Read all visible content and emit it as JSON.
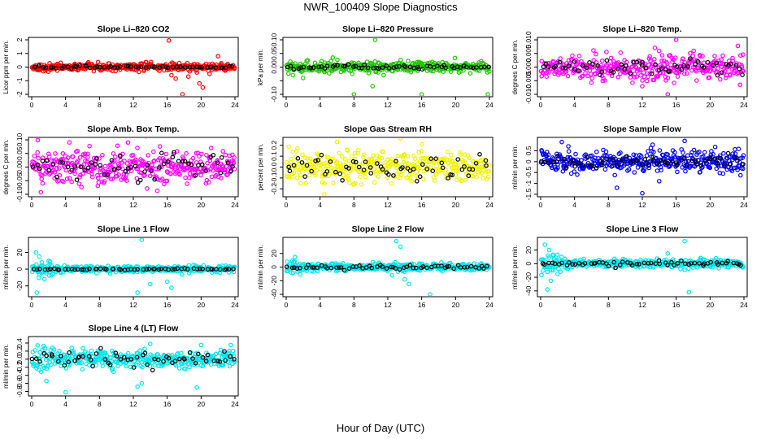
{
  "figure": {
    "title": "NWR_100409  Slope Diagnostics",
    "xlabel": "Hour of Day (UTC)"
  },
  "colors": {
    "red": "#ff0000",
    "green": "#1fc400",
    "magenta": "#ff00ff",
    "yellow": "#f2f200",
    "blue": "#0000ff",
    "cyan": "#00e5ee",
    "black": "#000000"
  },
  "chart_data": [
    {
      "type": "scatter",
      "title": "Slope Li–820 CO2",
      "ylabel": "Licor ppm per min.",
      "color": "red",
      "xlim": [
        0,
        24
      ],
      "x_ticks": [
        "0",
        "4",
        "8",
        "12",
        "16",
        "20",
        "24"
      ],
      "ylim": [
        -2,
        2
      ],
      "y_ticks": [
        -2,
        -1,
        0,
        1,
        2
      ],
      "y_tick_labels": [
        "-2",
        "-1",
        "0",
        "1",
        "2"
      ],
      "grid": false,
      "series": [
        {
          "color": "red",
          "spread": 0.18,
          "outliers": [
            [
              16.2,
              1.95
            ],
            [
              16.5,
              -0.6
            ],
            [
              17.0,
              -0.85
            ],
            [
              17.8,
              -2.0
            ],
            [
              18.5,
              -0.7
            ],
            [
              19.5,
              -0.4
            ],
            [
              19.8,
              -1.2
            ],
            [
              20.2,
              -1.5
            ],
            [
              21.0,
              -0.5
            ],
            [
              22.0,
              0.8
            ]
          ]
        },
        {
          "color": "black",
          "spread": 0.07
        }
      ]
    },
    {
      "type": "scatter",
      "title": "Slope Li–820 Pressure",
      "ylabel": "kPa per min.",
      "color": "green",
      "xlim": [
        0,
        24
      ],
      "x_ticks": [
        "0",
        "4",
        "8",
        "12",
        "16",
        "20",
        "24"
      ],
      "ylim": [
        -0.1,
        0.1
      ],
      "y_ticks": [
        -0.1,
        -0.05,
        0,
        0.05,
        0.1
      ],
      "y_tick_labels": [
        "-0.10",
        "",
        "0.00",
        "0.05",
        "0.10"
      ],
      "grid": false,
      "series": [
        {
          "color": "green",
          "spread": 0.012,
          "outliers": [
            [
              0.5,
              0.02
            ],
            [
              0.8,
              -0.03
            ],
            [
              2.0,
              -0.04
            ],
            [
              5.5,
              0.035
            ],
            [
              8.0,
              -0.1
            ],
            [
              10.5,
              0.1
            ],
            [
              10.2,
              -0.07
            ],
            [
              11.5,
              -0.03
            ],
            [
              16.0,
              -0.1
            ],
            [
              23.8,
              -0.1
            ]
          ]
        },
        {
          "color": "black",
          "spread": 0.005
        }
      ]
    },
    {
      "type": "scatter",
      "title": "Slope Li–820 Temp.",
      "ylabel": "degrees C per min.",
      "color": "magenta",
      "xlim": [
        0,
        24
      ],
      "x_ticks": [
        "0",
        "4",
        "8",
        "12",
        "16",
        "20",
        "24"
      ],
      "ylim": [
        -0.01,
        0.01
      ],
      "y_ticks": [
        -0.01,
        -0.005,
        0,
        0.005,
        0.01
      ],
      "y_tick_labels": [
        "-0.010",
        "-0.005",
        "0.000",
        "0.005",
        "0.010"
      ],
      "grid": false,
      "series": [
        {
          "color": "magenta",
          "spread": 0.003,
          "outliers": [
            [
              12.0,
              -0.007
            ],
            [
              15.0,
              -0.01
            ],
            [
              16.0,
              0.01
            ]
          ]
        },
        {
          "color": "black",
          "spread": 0.002
        }
      ]
    },
    {
      "type": "scatter",
      "title": "Slope Amb. Box Temp.",
      "ylabel": "degrees C per min.",
      "color": "magenta",
      "xlim": [
        0,
        24
      ],
      "x_ticks": [
        "0",
        "4",
        "8",
        "12",
        "16",
        "20",
        "24"
      ],
      "ylim": [
        -0.1,
        0.1
      ],
      "y_ticks": [
        -0.1,
        -0.05,
        0,
        0.05,
        0.1
      ],
      "y_tick_labels": [
        "-0.10",
        "-0.05",
        "0.00",
        "0.05",
        "0.10"
      ],
      "grid": false,
      "series": [
        {
          "color": "magenta",
          "spread": 0.045,
          "outliers": []
        },
        {
          "color": "black",
          "spread": 0.035
        }
      ]
    },
    {
      "type": "scatter",
      "title": "Slope Gas Stream RH",
      "ylabel": "percent per min.",
      "color": "yellow",
      "xlim": [
        0,
        24
      ],
      "x_ticks": [
        "0",
        "4",
        "8",
        "12",
        "16",
        "20",
        "24"
      ],
      "ylim": [
        -0.25,
        0.25
      ],
      "y_ticks": [
        -0.2,
        -0.1,
        0,
        0.1,
        0.2
      ],
      "y_tick_labels": [
        "-0.2",
        "-0.1",
        "0.0",
        "0.1",
        "0.2"
      ],
      "grid": false,
      "series": [
        {
          "color": "yellow",
          "spread": 0.09,
          "outliers": [
            [
              4.5,
              -0.25
            ],
            [
              6.0,
              0.23
            ]
          ]
        },
        {
          "color": "black",
          "spread": 0.07
        }
      ]
    },
    {
      "type": "scatter",
      "title": "Slope Sample Flow",
      "ylabel": "ml/min per min.",
      "color": "blue",
      "xlim": [
        0,
        24
      ],
      "x_ticks": [
        "0",
        "4",
        "8",
        "12",
        "16",
        "20",
        "24"
      ],
      "ylim": [
        -1.5,
        1.0
      ],
      "y_ticks": [
        -1.5,
        -1,
        -0.5,
        0,
        0.5
      ],
      "y_tick_labels": [
        "-1.5",
        "-1",
        "-0.5",
        "0",
        "0.5"
      ],
      "grid": false,
      "series": [
        {
          "color": "blue",
          "spread": 0.32,
          "outliers": [
            [
              2.5,
              0.9
            ],
            [
              12.0,
              -1.45
            ],
            [
              14.0,
              -0.9
            ],
            [
              17.0,
              0.95
            ],
            [
              9.0,
              -1.2
            ]
          ]
        },
        {
          "color": "black",
          "spread": 0.2
        }
      ]
    },
    {
      "type": "scatter",
      "title": "Slope Line 1 Flow",
      "ylabel": "ml/min per min.",
      "color": "cyan",
      "xlim": [
        0,
        24
      ],
      "x_ticks": [
        "0",
        "4",
        "8",
        "12",
        "16",
        "20",
        "24"
      ],
      "ylim": [
        -30,
        35
      ],
      "y_ticks": [
        -20,
        0,
        20
      ],
      "y_tick_labels": [
        "-20",
        "0",
        "20"
      ],
      "grid": false,
      "series": [
        {
          "color": "cyan",
          "spread": 2.5,
          "outliers": [
            [
              0.5,
              20
            ],
            [
              0.9,
              15
            ],
            [
              1.2,
              8
            ],
            [
              0.6,
              -28
            ],
            [
              1.5,
              -12
            ],
            [
              2.5,
              -6
            ],
            [
              13.0,
              35
            ],
            [
              12.5,
              -28
            ],
            [
              14.0,
              -18
            ],
            [
              16.0,
              -15
            ],
            [
              16.5,
              -22
            ],
            [
              2.0,
              10
            ]
          ]
        },
        {
          "color": "black",
          "spread": 0.6
        }
      ]
    },
    {
      "type": "scatter",
      "title": "Slope Line 2 Flow",
      "ylabel": "ml/min per min.",
      "color": "cyan",
      "xlim": [
        0,
        24
      ],
      "x_ticks": [
        "0",
        "4",
        "8",
        "12",
        "16",
        "20",
        "24"
      ],
      "ylim": [
        -40,
        40
      ],
      "y_ticks": [
        -40,
        -20,
        0,
        20
      ],
      "y_tick_labels": [
        "-40",
        "-20",
        "0",
        "20"
      ],
      "grid": false,
      "series": [
        {
          "color": "cyan",
          "spread": 3.5,
          "outliers": [
            [
              1.0,
              8
            ],
            [
              13.0,
              38
            ],
            [
              13.5,
              30
            ],
            [
              12.5,
              -12
            ],
            [
              14.0,
              -18
            ],
            [
              14.5,
              -25
            ],
            [
              17.0,
              -40
            ],
            [
              3.0,
              -6
            ]
          ]
        },
        {
          "color": "black",
          "spread": 2.0
        }
      ]
    },
    {
      "type": "scatter",
      "title": "Slope Line 3 Flow",
      "ylabel": "ml/min per min.",
      "color": "cyan",
      "xlim": [
        0,
        24
      ],
      "x_ticks": [
        "0",
        "4",
        "8",
        "12",
        "16",
        "20",
        "24"
      ],
      "ylim": [
        -45,
        35
      ],
      "y_ticks": [
        -40,
        -20,
        0,
        20
      ],
      "y_tick_labels": [
        "-40",
        "-20",
        "0",
        "20"
      ],
      "grid": false,
      "series": [
        {
          "color": "cyan",
          "spread": 4,
          "outliers": [
            [
              0.5,
              28
            ],
            [
              1.0,
              20
            ],
            [
              1.2,
              -25
            ],
            [
              0.8,
              -38
            ],
            [
              1.5,
              12
            ],
            [
              2.0,
              -15
            ],
            [
              17.0,
              33
            ],
            [
              17.5,
              -42
            ],
            [
              16.5,
              -8
            ],
            [
              15.0,
              15
            ]
          ]
        },
        {
          "color": "black",
          "spread": 2.5
        }
      ]
    },
    {
      "type": "scatter",
      "title": "Slope Line 4 (LT) Flow",
      "ylabel": "ml/min per min.",
      "color": "cyan",
      "xlim": [
        0,
        24
      ],
      "x_ticks": [
        "0",
        "4",
        "8",
        "12",
        "16",
        "20",
        "24"
      ],
      "ylim": [
        -0.85,
        0.5
      ],
      "y_ticks": [
        -0.8,
        -0.6,
        -0.4,
        -0.2,
        0,
        0.2,
        0.4
      ],
      "y_tick_labels": [
        "-0.8",
        "-0.6",
        "-0.4",
        "-0.2",
        "0.0",
        "0.2",
        "0.4"
      ],
      "grid": false,
      "series": [
        {
          "color": "cyan",
          "spread": 0.14,
          "outliers": [
            [
              4.0,
              -0.82
            ],
            [
              12.5,
              -0.68
            ],
            [
              13.0,
              -0.6
            ],
            [
              14.0,
              0.38
            ],
            [
              20.0,
              0.35
            ],
            [
              23.5,
              0.35
            ],
            [
              19.5,
              -0.7
            ]
          ]
        },
        {
          "color": "black",
          "spread": 0.12
        }
      ]
    }
  ]
}
